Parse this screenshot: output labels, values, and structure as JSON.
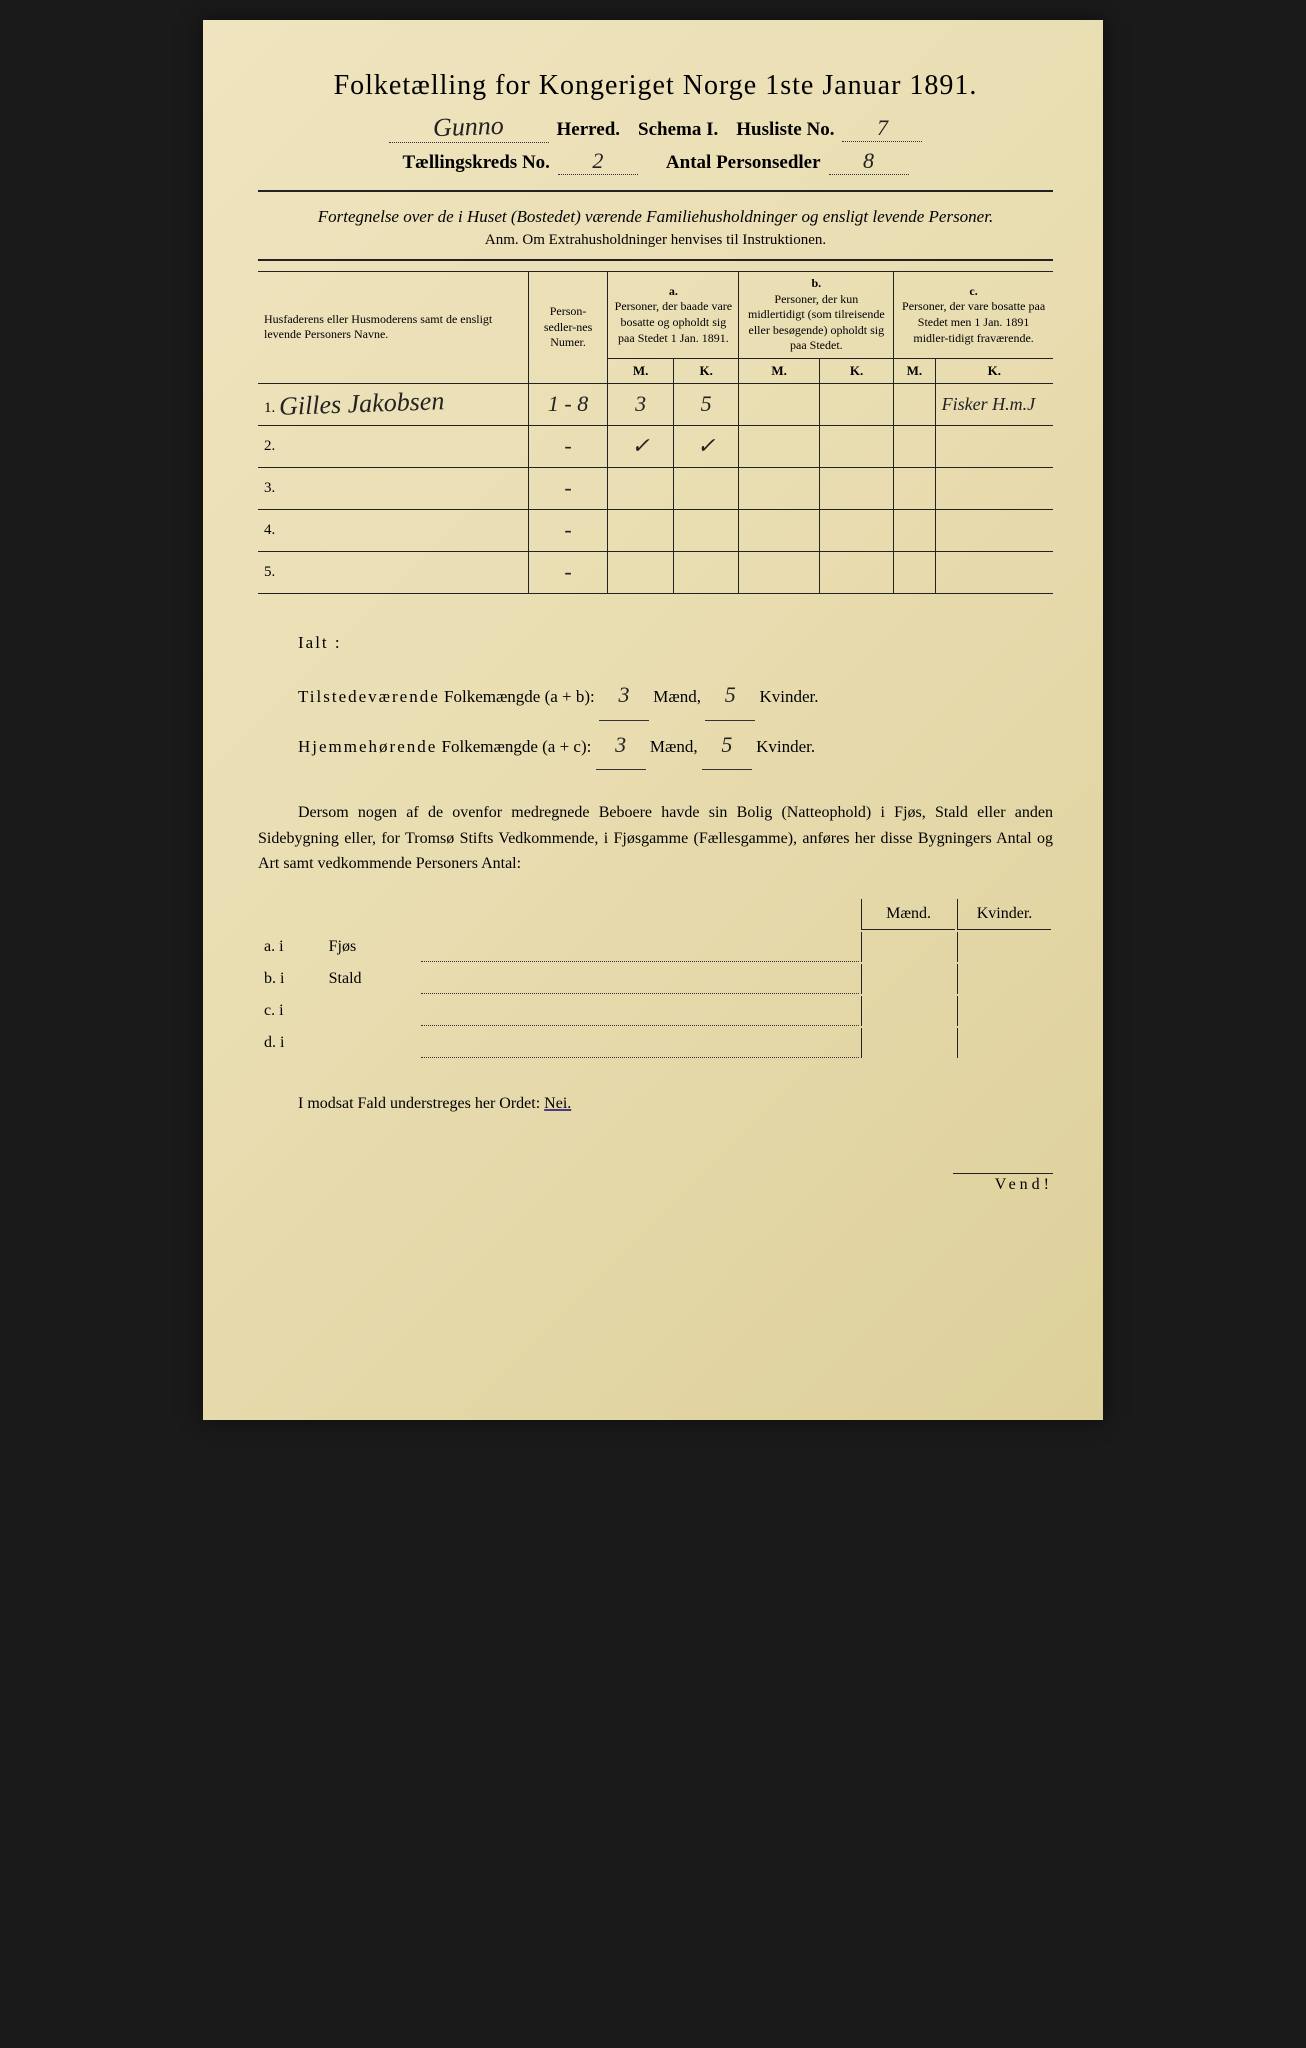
{
  "header": {
    "title": "Folketælling for Kongeriget Norge 1ste Januar 1891.",
    "herred_hand": "Gunno",
    "herred_label": "Herred.",
    "schema_label": "Schema I.",
    "husliste_label": "Husliste No.",
    "husliste_no": "7",
    "kreds_label": "Tællingskreds No.",
    "kreds_no": "2",
    "antal_label": "Antal Personsedler",
    "antal_no": "8"
  },
  "description": "Fortegnelse over de i Huset (Bostedet) værende Familiehusholdninger og ensligt levende Personer.",
  "anm": "Anm.  Om Extrahusholdninger henvises til Instruktionen.",
  "table": {
    "col_names": "Husfaderens eller Husmoderens samt de ensligt levende Personers Navne.",
    "col_numer": "Person-sedler-nes Numer.",
    "col_a_label": "a.",
    "col_a": "Personer, der baade vare bosatte og opholdt sig paa Stedet 1 Jan. 1891.",
    "col_b_label": "b.",
    "col_b": "Personer, der kun midlertidigt (som tilreisende eller besøgende) opholdt sig paa Stedet.",
    "col_c_label": "c.",
    "col_c": "Personer, der vare bosatte paa Stedet men 1 Jan. 1891 midler-tidigt fraværende.",
    "m": "M.",
    "k": "K.",
    "rows": [
      {
        "num": "1.",
        "name": "Gilles Jakobsen",
        "numer": "1 - 8",
        "a_m": "3",
        "a_k": "5",
        "b_m": "",
        "b_k": "",
        "c_m": "",
        "c_k": "Fisker H.m.J"
      },
      {
        "num": "2.",
        "name": "",
        "numer": "-",
        "a_m": "✓",
        "a_k": "✓",
        "b_m": "",
        "b_k": "",
        "c_m": "",
        "c_k": ""
      },
      {
        "num": "3.",
        "name": "",
        "numer": "-",
        "a_m": "",
        "a_k": "",
        "b_m": "",
        "b_k": "",
        "c_m": "",
        "c_k": ""
      },
      {
        "num": "4.",
        "name": "",
        "numer": "-",
        "a_m": "",
        "a_k": "",
        "b_m": "",
        "b_k": "",
        "c_m": "",
        "c_k": ""
      },
      {
        "num": "5.",
        "name": "",
        "numer": "-",
        "a_m": "",
        "a_k": "",
        "b_m": "",
        "b_k": "",
        "c_m": "",
        "c_k": ""
      }
    ]
  },
  "summary": {
    "ialt": "Ialt :",
    "line1a": "Tilstedeværende",
    "line1b": "Folkemængde (a + b):",
    "line1_m": "3",
    "maend": "Mænd,",
    "line1_k": "5",
    "kvinder": "Kvinder.",
    "line2a": "Hjemmehørende",
    "line2b": "Folkemængde (a + c):",
    "line2_m": "3",
    "line2_k": "5"
  },
  "paragraph": "Dersom nogen af de ovenfor medregnede Beboere havde sin Bolig (Natteophold) i Fjøs, Stald eller anden Sidebygning eller, for Tromsø Stifts Vedkommende, i Fjøsgamme (Fællesgamme), anføres her disse Bygningers Antal og Art samt vedkommende Personers Antal:",
  "buildings": {
    "maend": "Mænd.",
    "kvinder": "Kvinder.",
    "rows": [
      {
        "label": "a.  i",
        "name": "Fjøs"
      },
      {
        "label": "b.  i",
        "name": "Stald"
      },
      {
        "label": "c.  i",
        "name": ""
      },
      {
        "label": "d.  i",
        "name": ""
      }
    ]
  },
  "nei_line": "I modsat Fald understreges her Ordet:",
  "nei": "Nei.",
  "vend": "Vend!",
  "colors": {
    "paper": "#e8dcb0",
    "ink": "#222222",
    "underline": "#4a3a8a"
  }
}
